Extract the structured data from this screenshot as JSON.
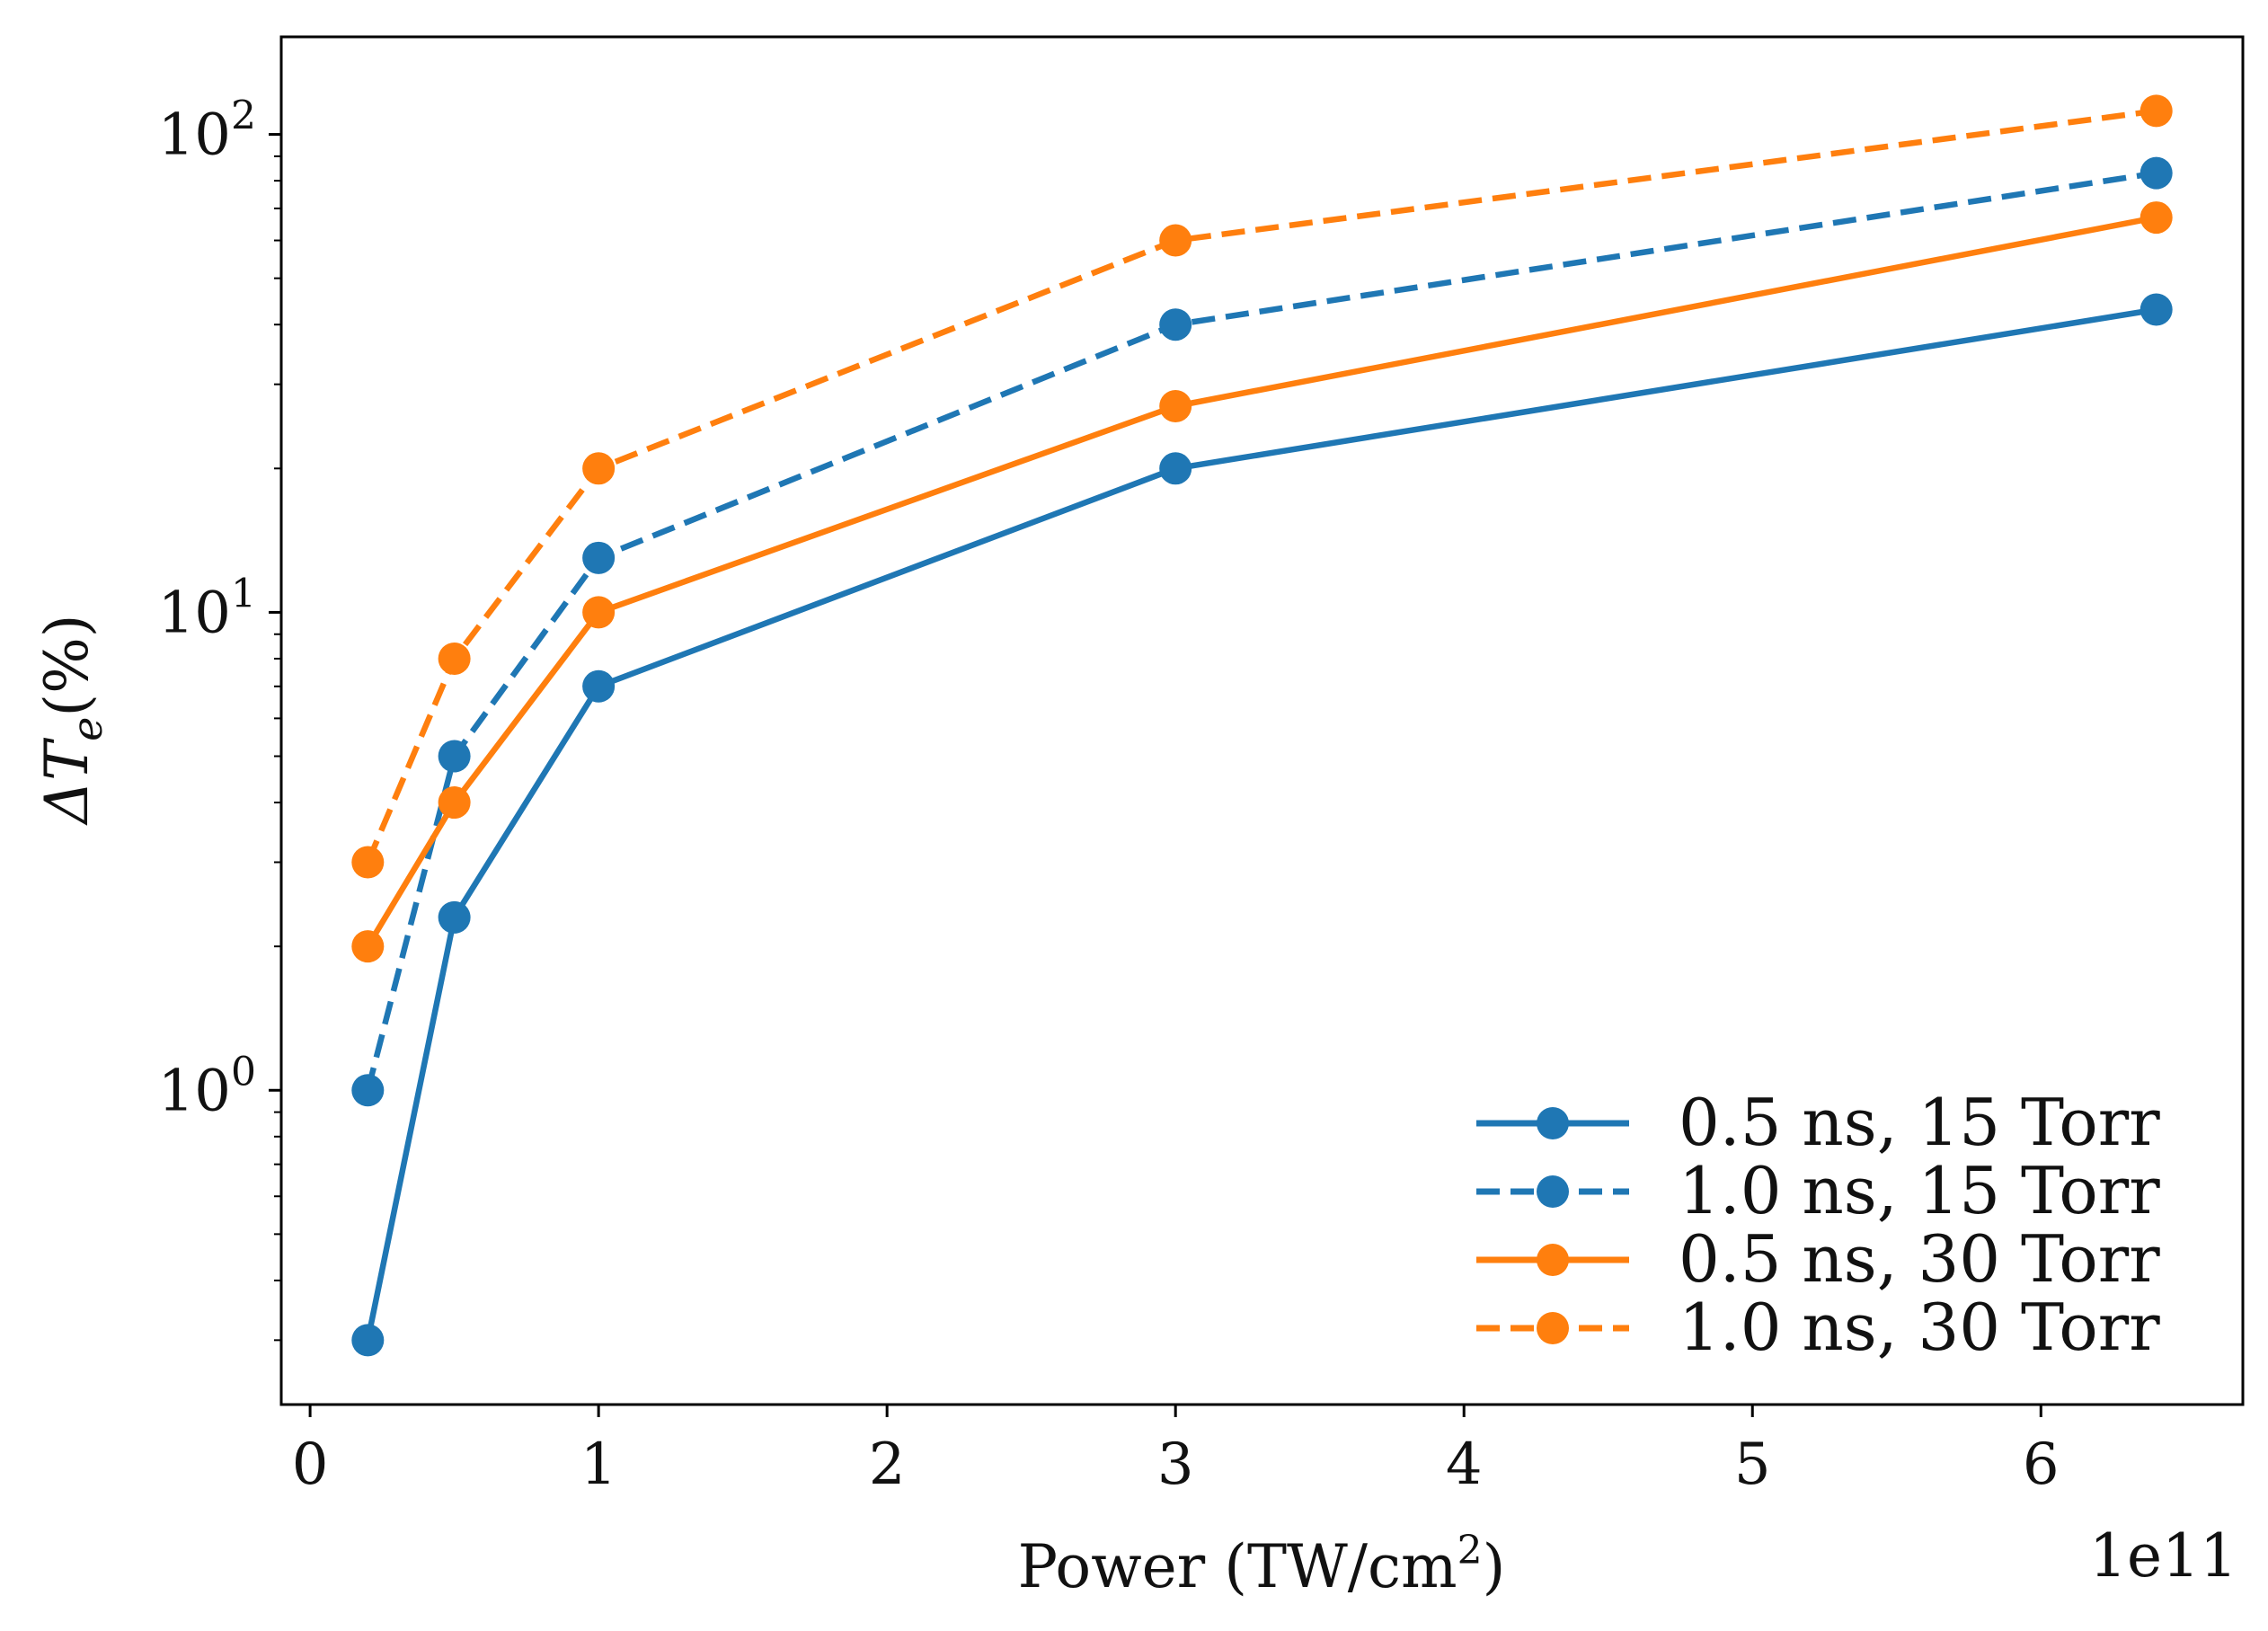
{
  "chart_data": {
    "type": "line",
    "xlabel_prefix": "Power (TW/cm",
    "xlabel_sup": "2",
    "xlabel_suffix": ")",
    "ylabel_prefix": "ΔT",
    "ylabel_sub": "e",
    "ylabel_suffix": "(%)",
    "x_offset_text": "1e11",
    "xscale": "linear",
    "yscale": "log",
    "xlim": [
      -0.1,
      6.7
    ],
    "ylim": [
      0.22,
      160
    ],
    "x_ticks": [
      0,
      1,
      2,
      3,
      4,
      5,
      6
    ],
    "x_tick_labels": [
      "0",
      "1",
      "2",
      "3",
      "4",
      "5",
      "6"
    ],
    "y_ticks": [
      {
        "base": "10",
        "exp": "0",
        "value": 1
      },
      {
        "base": "10",
        "exp": "1",
        "value": 10
      },
      {
        "base": "10",
        "exp": "2",
        "value": 100
      }
    ],
    "legend_position": "lower-right",
    "series": [
      {
        "name": "0.5 ns, 15 Torr",
        "color": "#1f77b4",
        "linestyle": "solid",
        "x": [
          0.2,
          0.5,
          1.0,
          3.0,
          6.4
        ],
        "y": [
          0.3,
          2.3,
          7.0,
          20.0,
          43.0
        ]
      },
      {
        "name": "1.0 ns, 15 Torr",
        "color": "#1f77b4",
        "linestyle": "dashed",
        "x": [
          0.2,
          0.5,
          1.0,
          3.0,
          6.4
        ],
        "y": [
          1.0,
          5.0,
          13.0,
          40.0,
          83.0
        ]
      },
      {
        "name": "0.5 ns, 30 Torr",
        "color": "#ff7f0e",
        "linestyle": "solid",
        "x": [
          0.2,
          0.5,
          1.0,
          3.0,
          6.4
        ],
        "y": [
          2.0,
          4.0,
          10.0,
          27.0,
          67.0
        ]
      },
      {
        "name": "1.0 ns, 30 Torr",
        "color": "#ff7f0e",
        "linestyle": "dashed",
        "x": [
          0.2,
          0.5,
          1.0,
          3.0,
          6.4
        ],
        "y": [
          3.0,
          8.0,
          20.0,
          60.0,
          112.0
        ]
      }
    ]
  }
}
